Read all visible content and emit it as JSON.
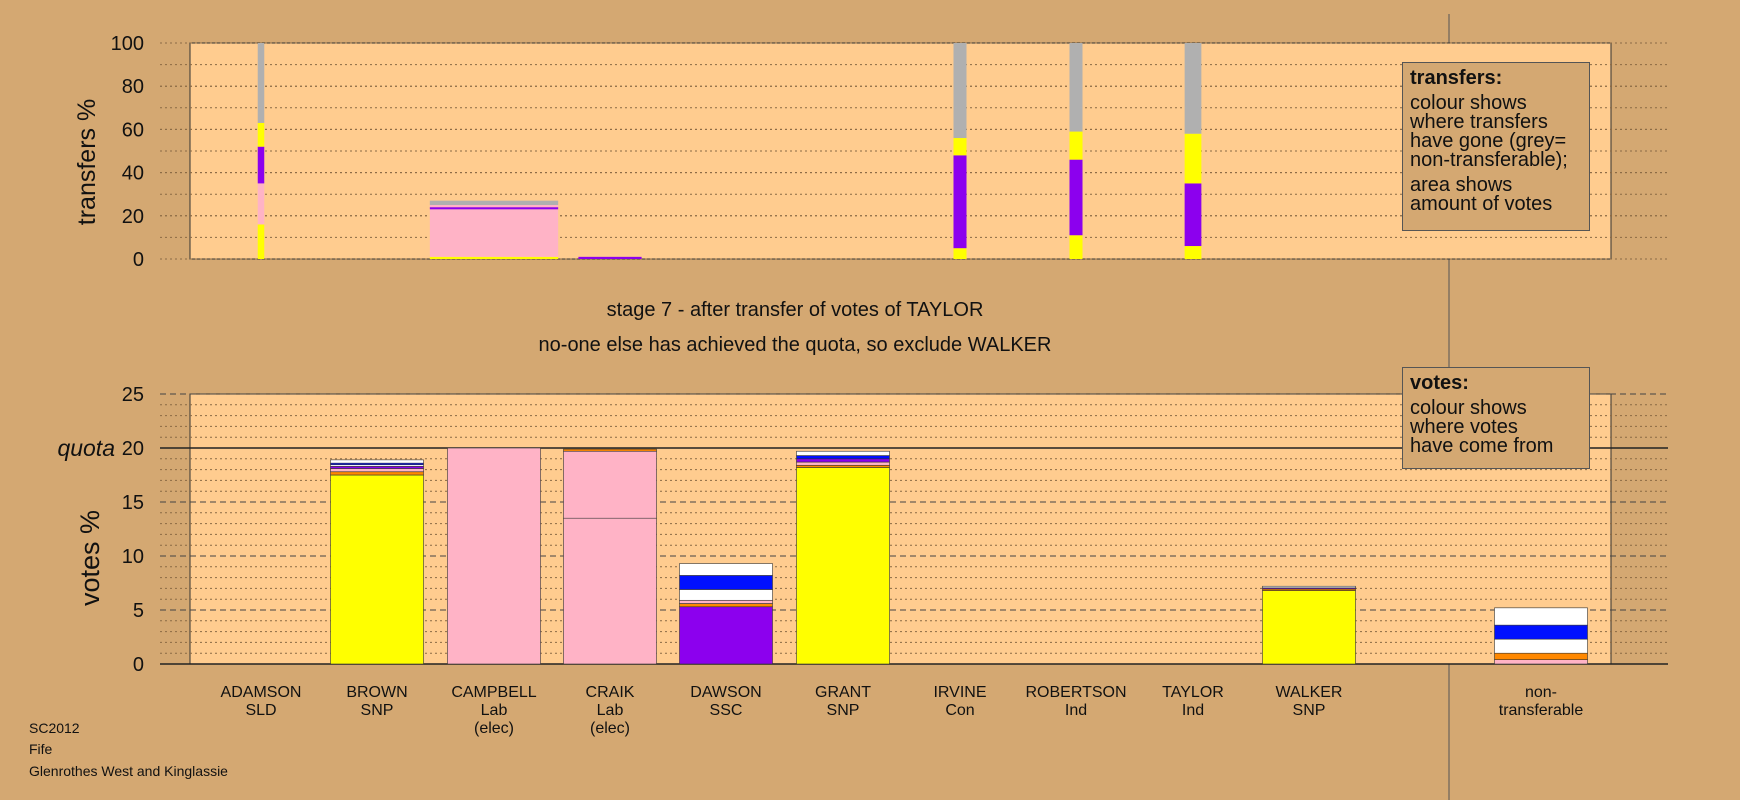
{
  "footer": {
    "code": "SC2012",
    "council": "Fife",
    "ward": "Glenrothes West and Kinglassie"
  },
  "captions": {
    "stage": "stage 7 - after transfer of votes of TAYLOR",
    "action": "no-one else has achieved the quota, so exclude WALKER"
  },
  "legends": {
    "transfers": {
      "title": "transfers:",
      "lines1": [
        "colour shows",
        "where transfers",
        "have gone (grey=",
        "non-transferable);"
      ],
      "lines2": [
        "area shows",
        "amount of votes"
      ]
    },
    "votes": {
      "title": "votes:",
      "lines": [
        "colour shows",
        "where votes",
        "have come from"
      ]
    }
  },
  "colors": {
    "background": "#d4a872",
    "plot_bg": "#ffcc8f",
    "SNP": "#ffff00",
    "Lab": "#ffb3c6",
    "SSC": "#8c00ee",
    "Con": "#0010ff",
    "SLD": "#ff8800",
    "Ind": "#ffffff",
    "nontransferable": "#b0b0b0"
  },
  "chart_data": [
    {
      "id": "transfers",
      "type": "bar",
      "ylabel": "transfers %",
      "ylim": [
        0,
        100
      ],
      "yticks": [
        0,
        20,
        40,
        60,
        80,
        100
      ],
      "grid": true,
      "bars": [
        {
          "index": 0,
          "width_frac": 0.07,
          "segments": [
            {
              "color": "#ffff00",
              "value": 16
            },
            {
              "color": "#ffb3c6",
              "value": 19
            },
            {
              "color": "#8c00ee",
              "value": 17
            },
            {
              "color": "#ffff00",
              "value": 11
            },
            {
              "color": "#b0b0b0",
              "value": 37
            }
          ]
        },
        {
          "index": 2,
          "width_frac": 1.38,
          "segments": [
            {
              "color": "#ffff00",
              "value": 1
            },
            {
              "color": "#ffb3c6",
              "value": 22
            },
            {
              "color": "#8c00ee",
              "value": 1
            },
            {
              "color": "#ffb3c6",
              "value": 1
            },
            {
              "color": "#b0b0b0",
              "value": 2
            }
          ]
        },
        {
          "index": 3,
          "width_frac": 0.68,
          "segments": [
            {
              "color": "#8c00ee",
              "value": 1
            }
          ]
        },
        {
          "index": 6,
          "width_frac": 0.14,
          "segments": [
            {
              "color": "#ffff00",
              "value": 5
            },
            {
              "color": "#8c00ee",
              "value": 43
            },
            {
              "color": "#ffff00",
              "value": 8
            },
            {
              "color": "#b0b0b0",
              "value": 44
            }
          ]
        },
        {
          "index": 7,
          "width_frac": 0.14,
          "segments": [
            {
              "color": "#ffff00",
              "value": 11
            },
            {
              "color": "#8c00ee",
              "value": 35
            },
            {
              "color": "#ffff00",
              "value": 13
            },
            {
              "color": "#b0b0b0",
              "value": 41
            }
          ]
        },
        {
          "index": 8,
          "width_frac": 0.18,
          "segments": [
            {
              "color": "#ffff00",
              "value": 6
            },
            {
              "color": "#8c00ee",
              "value": 29
            },
            {
              "color": "#ffff00",
              "value": 23
            },
            {
              "color": "#b0b0b0",
              "value": 42
            }
          ]
        }
      ]
    },
    {
      "id": "votes",
      "type": "bar",
      "ylabel": "votes %",
      "ylim": [
        0,
        25
      ],
      "yticks": [
        0,
        5,
        10,
        15,
        20,
        25
      ],
      "quota": 20,
      "quota_label": "quota",
      "grid": true,
      "categories": [
        {
          "name": "ADAMSON",
          "party": "SLD",
          "note": ""
        },
        {
          "name": "BROWN",
          "party": "SNP",
          "note": ""
        },
        {
          "name": "CAMPBELL",
          "party": "Lab",
          "note": "(elec)"
        },
        {
          "name": "CRAIK",
          "party": "Lab",
          "note": "(elec)"
        },
        {
          "name": "DAWSON",
          "party": "SSC",
          "note": ""
        },
        {
          "name": "GRANT",
          "party": "SNP",
          "note": ""
        },
        {
          "name": "IRVINE",
          "party": "Con",
          "note": ""
        },
        {
          "name": "ROBERTSON",
          "party": "Ind",
          "note": ""
        },
        {
          "name": "TAYLOR",
          "party": "Ind",
          "note": ""
        },
        {
          "name": "WALKER",
          "party": "SNP",
          "note": ""
        },
        {
          "name": "non-",
          "party": "transferable",
          "note": ""
        }
      ],
      "bars": [
        {
          "index": 0,
          "segments": []
        },
        {
          "index": 1,
          "segments": [
            {
              "color": "#ffff00",
              "value": 17.5
            },
            {
              "color": "#ff8800",
              "value": 0.3
            },
            {
              "color": "#ffb3c6",
              "value": 0.3
            },
            {
              "color": "#8c00ee",
              "value": 0.2
            },
            {
              "color": "#ffffff",
              "value": 0.15
            },
            {
              "color": "#0010ff",
              "value": 0.15
            },
            {
              "color": "#ffffff",
              "value": 0.3
            }
          ]
        },
        {
          "index": 2,
          "segments": [
            {
              "color": "#ffb3c6",
              "value": 20.0
            }
          ]
        },
        {
          "index": 3,
          "segments": [
            {
              "color": "#ffb3c6",
              "value": 13.5
            },
            {
              "color": "#ffb3c6",
              "value": 6.2
            },
            {
              "color": "#ff8800",
              "value": 0.2
            }
          ]
        },
        {
          "index": 4,
          "segments": [
            {
              "color": "#8c00ee",
              "value": 5.3
            },
            {
              "color": "#ff8800",
              "value": 0.3
            },
            {
              "color": "#ffb3c6",
              "value": 0.3
            },
            {
              "color": "#ffffff",
              "value": 1.0
            },
            {
              "color": "#0010ff",
              "value": 1.3
            },
            {
              "color": "#ffffff",
              "value": 1.1
            }
          ]
        },
        {
          "index": 5,
          "segments": [
            {
              "color": "#ffff00",
              "value": 18.2
            },
            {
              "color": "#ff8800",
              "value": 0.2
            },
            {
              "color": "#ffb3c6",
              "value": 0.3
            },
            {
              "color": "#8c00ee",
              "value": 0.3
            },
            {
              "color": "#0010ff",
              "value": 0.3
            },
            {
              "color": "#ffffff",
              "value": 0.4
            }
          ]
        },
        {
          "index": 6,
          "segments": []
        },
        {
          "index": 7,
          "segments": []
        },
        {
          "index": 8,
          "segments": []
        },
        {
          "index": 9,
          "segments": [
            {
              "color": "#ffff00",
              "value": 6.8
            },
            {
              "color": "#ff8800",
              "value": 0.15
            },
            {
              "color": "#8c00ee",
              "value": 0.1
            },
            {
              "color": "#ffffff",
              "value": 0.15
            }
          ]
        },
        {
          "index": 10,
          "segments": [
            {
              "color": "#ffb3c6",
              "value": 0.4
            },
            {
              "color": "#ff8800",
              "value": 0.6
            },
            {
              "color": "#ffffff",
              "value": 1.3
            },
            {
              "color": "#0010ff",
              "value": 1.3
            },
            {
              "color": "#ffffff",
              "value": 1.6
            }
          ]
        }
      ]
    }
  ]
}
